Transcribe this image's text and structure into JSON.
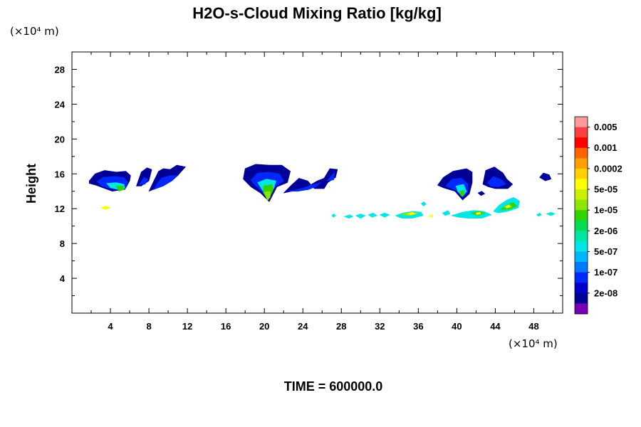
{
  "chart_data": {
    "type": "heatmap",
    "title": "H2O-s-Cloud Mixing Ratio [kg/kg]",
    "xlabel": "",
    "ylabel": "Height",
    "x_unit": "(×10⁴ m)",
    "y_unit": "(×10⁴ m)",
    "xlim": [
      0,
      51
    ],
    "ylim": [
      0,
      30
    ],
    "x_ticks": [
      4,
      8,
      12,
      16,
      20,
      24,
      28,
      32,
      36,
      40,
      44,
      48
    ],
    "y_ticks": [
      4,
      8,
      12,
      16,
      20,
      24,
      28
    ],
    "footer": "TIME = 600000.0",
    "colorbar": {
      "labels": [
        "0.005",
        "0.001",
        "0.0002",
        "5e-05",
        "1e-05",
        "2e-06",
        "5e-07",
        "1e-07",
        "2e-08"
      ],
      "colors": [
        "#ff9a9a",
        "#ff4040",
        "#ff0000",
        "#ff6400",
        "#ffa000",
        "#ffd200",
        "#ffff00",
        "#c8f000",
        "#8ce600",
        "#32d200",
        "#00dc50",
        "#00e6a0",
        "#00e6e6",
        "#00b4ff",
        "#0078ff",
        "#0028ff",
        "#0000c8",
        "#000096",
        "#7800b4"
      ]
    },
    "regions": [
      {
        "layer": 1,
        "points": [
          [
            1.8,
            15.2
          ],
          [
            2.4,
            16.0
          ],
          [
            3.4,
            16.4
          ],
          [
            4.6,
            16.2
          ],
          [
            5.6,
            16.3
          ],
          [
            6.1,
            15.8
          ],
          [
            6.0,
            15.2
          ],
          [
            5.5,
            14.2
          ],
          [
            4.8,
            14.1
          ],
          [
            4.2,
            14.0
          ],
          [
            3.2,
            14.4
          ],
          [
            2.5,
            14.7
          ],
          [
            1.8,
            14.9
          ]
        ]
      },
      {
        "layer": 2,
        "points": [
          [
            2.6,
            15.1
          ],
          [
            3.2,
            15.6
          ],
          [
            4.3,
            15.7
          ],
          [
            5.4,
            15.6
          ],
          [
            5.8,
            15.0
          ],
          [
            5.5,
            14.3
          ],
          [
            4.8,
            14.2
          ],
          [
            4.0,
            14.3
          ],
          [
            3.1,
            14.6
          ]
        ]
      },
      {
        "layer": 3,
        "points": [
          [
            3.6,
            14.9
          ],
          [
            4.6,
            15.0
          ],
          [
            5.4,
            14.8
          ],
          [
            5.5,
            14.3
          ],
          [
            4.8,
            14.2
          ],
          [
            4.0,
            14.4
          ]
        ]
      },
      {
        "layer": 4,
        "points": [
          [
            4.6,
            14.6
          ],
          [
            5.3,
            14.6
          ],
          [
            5.4,
            14.2
          ],
          [
            4.9,
            14.0
          ]
        ]
      },
      {
        "layer": 1,
        "points": [
          [
            6.7,
            14.6
          ],
          [
            7.2,
            16.2
          ],
          [
            7.8,
            16.7
          ],
          [
            8.3,
            16.5
          ],
          [
            8.0,
            15.2
          ],
          [
            7.2,
            14.6
          ]
        ]
      },
      {
        "layer": 2,
        "points": [
          [
            7.0,
            14.8
          ],
          [
            7.5,
            15.6
          ],
          [
            7.9,
            15.4
          ],
          [
            7.6,
            14.8
          ]
        ]
      },
      {
        "layer": 1,
        "points": [
          [
            8.0,
            14.0
          ],
          [
            8.9,
            14.4
          ],
          [
            10.0,
            15.0
          ],
          [
            11.0,
            15.8
          ],
          [
            11.8,
            16.8
          ],
          [
            10.9,
            17.0
          ],
          [
            10.2,
            16.5
          ],
          [
            9.5,
            16.6
          ],
          [
            9.0,
            16.3
          ],
          [
            8.6,
            15.4
          ]
        ]
      },
      {
        "layer": 2,
        "points": [
          [
            8.5,
            14.2
          ],
          [
            9.5,
            14.6
          ],
          [
            10.4,
            15.2
          ],
          [
            11.0,
            15.8
          ],
          [
            10.2,
            15.8
          ],
          [
            9.3,
            15.5
          ],
          [
            8.8,
            14.8
          ]
        ]
      },
      {
        "layer": 6,
        "points": [
          [
            3.5,
            12.3
          ],
          [
            4.0,
            12.1
          ],
          [
            3.5,
            11.9
          ],
          [
            3.0,
            12.1
          ]
        ]
      },
      {
        "layer": 1,
        "points": [
          [
            17.8,
            15.4
          ],
          [
            18.0,
            16.6
          ],
          [
            19.1,
            17.1
          ],
          [
            20.5,
            17.0
          ],
          [
            21.8,
            17.0
          ],
          [
            22.7,
            16.3
          ],
          [
            22.4,
            15.0
          ],
          [
            21.3,
            14.5
          ],
          [
            20.5,
            12.8
          ],
          [
            19.6,
            13.8
          ],
          [
            18.6,
            14.5
          ]
        ]
      },
      {
        "layer": 2,
        "points": [
          [
            18.6,
            15.3
          ],
          [
            19.3,
            16.1
          ],
          [
            20.5,
            16.2
          ],
          [
            21.6,
            16.0
          ],
          [
            22.0,
            15.2
          ],
          [
            21.0,
            14.4
          ],
          [
            20.5,
            13.2
          ],
          [
            19.7,
            14.0
          ],
          [
            19.0,
            14.7
          ]
        ]
      },
      {
        "layer": 3,
        "points": [
          [
            19.3,
            15.0
          ],
          [
            20.2,
            15.4
          ],
          [
            21.2,
            15.2
          ],
          [
            21.0,
            14.4
          ],
          [
            20.5,
            13.3
          ],
          [
            19.8,
            14.1
          ]
        ]
      },
      {
        "layer": 4,
        "points": [
          [
            19.9,
            14.6
          ],
          [
            20.8,
            14.8
          ],
          [
            20.9,
            14.1
          ],
          [
            20.4,
            13.0
          ],
          [
            19.9,
            13.8
          ]
        ]
      },
      {
        "layer": 5,
        "points": [
          [
            20.0,
            13.9
          ],
          [
            20.6,
            14.0
          ],
          [
            20.6,
            13.3
          ],
          [
            20.3,
            13.0
          ]
        ]
      },
      {
        "layer": 1,
        "points": [
          [
            22.0,
            13.8
          ],
          [
            23.3,
            14.1
          ],
          [
            24.6,
            14.6
          ],
          [
            25.5,
            15.2
          ],
          [
            26.2,
            15.5
          ],
          [
            26.8,
            16.6
          ],
          [
            27.6,
            16.5
          ],
          [
            27.4,
            15.6
          ],
          [
            26.6,
            15.0
          ],
          [
            26.2,
            14.3
          ],
          [
            25.2,
            14.3
          ],
          [
            24.5,
            15.2
          ],
          [
            23.6,
            15.5
          ],
          [
            22.8,
            14.7
          ]
        ]
      },
      {
        "layer": 2,
        "points": [
          [
            22.6,
            14.0
          ],
          [
            23.8,
            14.3
          ],
          [
            24.9,
            14.7
          ],
          [
            25.9,
            15.0
          ],
          [
            25.3,
            14.5
          ],
          [
            24.6,
            14.2
          ],
          [
            23.5,
            14.0
          ]
        ]
      },
      {
        "layer": 2,
        "points": [
          [
            26.5,
            15.2
          ],
          [
            27.3,
            16.2
          ],
          [
            27.2,
            15.3
          ]
        ]
      },
      {
        "layer": 1,
        "points": [
          [
            38.0,
            14.7
          ],
          [
            38.6,
            15.6
          ],
          [
            39.6,
            16.3
          ],
          [
            41.0,
            16.6
          ],
          [
            41.6,
            16.2
          ],
          [
            41.6,
            15.0
          ],
          [
            41.3,
            13.7
          ],
          [
            40.6,
            13.0
          ],
          [
            39.8,
            14.0
          ],
          [
            38.6,
            14.4
          ]
        ]
      },
      {
        "layer": 2,
        "points": [
          [
            38.8,
            14.6
          ],
          [
            39.5,
            15.4
          ],
          [
            40.5,
            15.5
          ],
          [
            41.2,
            14.8
          ],
          [
            41.1,
            13.8
          ],
          [
            40.6,
            13.3
          ],
          [
            39.9,
            14.1
          ]
        ]
      },
      {
        "layer": 3,
        "points": [
          [
            39.9,
            14.6
          ],
          [
            40.7,
            14.8
          ],
          [
            41.0,
            14.0
          ],
          [
            40.6,
            13.4
          ],
          [
            40.1,
            14.0
          ]
        ]
      },
      {
        "layer": 4,
        "points": [
          [
            40.3,
            14.0
          ],
          [
            40.8,
            14.1
          ],
          [
            40.7,
            13.5
          ],
          [
            40.4,
            13.5
          ]
        ]
      },
      {
        "layer": 1,
        "points": [
          [
            42.7,
            14.8
          ],
          [
            43.0,
            16.4
          ],
          [
            43.9,
            16.8
          ],
          [
            44.8,
            16.1
          ],
          [
            45.2,
            15.4
          ],
          [
            45.8,
            14.8
          ],
          [
            45.3,
            14.3
          ],
          [
            44.0,
            14.3
          ],
          [
            43.3,
            14.5
          ]
        ]
      },
      {
        "layer": 2,
        "points": [
          [
            43.2,
            15.0
          ],
          [
            43.8,
            15.7
          ],
          [
            44.7,
            15.3
          ],
          [
            45.1,
            14.8
          ],
          [
            44.3,
            14.5
          ],
          [
            43.5,
            14.6
          ]
        ]
      },
      {
        "layer": 1,
        "points": [
          [
            48.6,
            15.6
          ],
          [
            49.0,
            16.1
          ],
          [
            49.6,
            15.9
          ],
          [
            49.8,
            15.4
          ],
          [
            49.2,
            15.2
          ]
        ]
      },
      {
        "layer": 1,
        "points": [
          [
            42.2,
            13.8
          ],
          [
            42.6,
            14.0
          ],
          [
            42.9,
            13.7
          ],
          [
            42.5,
            13.5
          ]
        ]
      },
      {
        "layer": 3,
        "points": [
          [
            43.8,
            11.7
          ],
          [
            44.4,
            12.4
          ],
          [
            45.2,
            13.0
          ],
          [
            45.9,
            13.3
          ],
          [
            46.5,
            12.9
          ],
          [
            46.4,
            12.1
          ],
          [
            45.3,
            11.7
          ],
          [
            44.3,
            11.5
          ]
        ]
      },
      {
        "layer": 4,
        "points": [
          [
            44.5,
            11.9
          ],
          [
            45.3,
            12.5
          ],
          [
            45.9,
            12.7
          ],
          [
            46.2,
            12.3
          ],
          [
            45.4,
            11.9
          ]
        ]
      },
      {
        "layer": 5,
        "points": [
          [
            44.9,
            12.2
          ],
          [
            45.5,
            12.5
          ],
          [
            45.7,
            12.2
          ],
          [
            45.2,
            12.0
          ]
        ]
      },
      {
        "layer": 6,
        "points": [
          [
            45.1,
            12.3
          ],
          [
            45.4,
            12.4
          ],
          [
            45.5,
            12.2
          ],
          [
            45.2,
            12.1
          ]
        ]
      },
      {
        "layer": 3,
        "points": [
          [
            39.4,
            11.2
          ],
          [
            40.6,
            11.6
          ],
          [
            41.8,
            11.8
          ],
          [
            42.8,
            11.7
          ],
          [
            43.6,
            11.3
          ],
          [
            42.6,
            10.9
          ],
          [
            41.2,
            10.9
          ],
          [
            40.2,
            11.0
          ]
        ]
      },
      {
        "layer": 4,
        "points": [
          [
            41.5,
            11.5
          ],
          [
            42.2,
            11.7
          ],
          [
            42.9,
            11.5
          ],
          [
            42.2,
            11.2
          ]
        ]
      },
      {
        "layer": 6,
        "points": [
          [
            42.0,
            11.5
          ],
          [
            42.4,
            11.6
          ],
          [
            42.5,
            11.4
          ],
          [
            42.1,
            11.3
          ]
        ]
      },
      {
        "layer": 3,
        "points": [
          [
            38.5,
            11.5
          ],
          [
            39.1,
            11.8
          ],
          [
            39.3,
            11.4
          ],
          [
            38.8,
            11.2
          ]
        ]
      },
      {
        "layer": 6,
        "points": [
          [
            37.1,
            11.1
          ],
          [
            37.4,
            11.3
          ],
          [
            37.5,
            11.0
          ]
        ]
      },
      {
        "layer": 3,
        "points": [
          [
            33.6,
            11.2
          ],
          [
            34.4,
            11.5
          ],
          [
            35.4,
            11.7
          ],
          [
            36.3,
            11.6
          ],
          [
            36.5,
            11.2
          ],
          [
            35.4,
            10.9
          ],
          [
            34.3,
            10.9
          ]
        ]
      },
      {
        "layer": 5,
        "points": [
          [
            34.2,
            11.3
          ],
          [
            35.2,
            11.6
          ],
          [
            36.0,
            11.5
          ],
          [
            35.2,
            11.2
          ]
        ]
      },
      {
        "layer": 6,
        "points": [
          [
            34.8,
            11.4
          ],
          [
            35.4,
            11.6
          ],
          [
            35.7,
            11.4
          ],
          [
            35.2,
            11.3
          ]
        ]
      },
      {
        "layer": 3,
        "points": [
          [
            36.3,
            12.6
          ],
          [
            36.6,
            12.8
          ],
          [
            36.8,
            12.5
          ],
          [
            36.5,
            12.3
          ]
        ]
      },
      {
        "layer": 3,
        "points": [
          [
            32.0,
            11.3
          ],
          [
            32.5,
            11.5
          ],
          [
            33.0,
            11.3
          ],
          [
            32.5,
            11.0
          ]
        ]
      },
      {
        "layer": 3,
        "points": [
          [
            30.8,
            11.3
          ],
          [
            31.3,
            11.5
          ],
          [
            31.7,
            11.2
          ],
          [
            31.2,
            11.0
          ]
        ]
      },
      {
        "layer": 3,
        "points": [
          [
            29.5,
            11.2
          ],
          [
            30.0,
            11.4
          ],
          [
            30.5,
            11.2
          ],
          [
            30.0,
            10.9
          ]
        ]
      },
      {
        "layer": 3,
        "points": [
          [
            28.3,
            11.1
          ],
          [
            28.9,
            11.3
          ],
          [
            29.2,
            11.1
          ],
          [
            28.8,
            10.9
          ]
        ]
      },
      {
        "layer": 3,
        "points": [
          [
            27.0,
            11.2
          ],
          [
            27.2,
            11.4
          ],
          [
            27.4,
            11.2
          ],
          [
            27.2,
            11.0
          ]
        ]
      },
      {
        "layer": 3,
        "points": [
          [
            48.3,
            11.3
          ],
          [
            48.6,
            11.5
          ],
          [
            48.8,
            11.3
          ],
          [
            48.5,
            11.1
          ]
        ]
      },
      {
        "layer": 3,
        "points": [
          [
            49.3,
            11.4
          ],
          [
            49.8,
            11.6
          ],
          [
            50.2,
            11.4
          ],
          [
            49.8,
            11.2
          ]
        ]
      }
    ]
  }
}
